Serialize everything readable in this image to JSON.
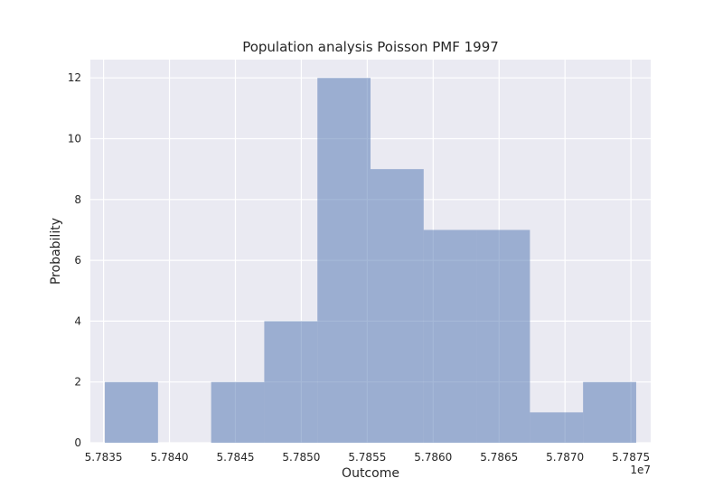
{
  "chart_data": {
    "type": "bar",
    "title": "Population analysis Poisson PMF 1997",
    "xlabel": "Outcome",
    "ylabel": "Probability",
    "offset_label": "1e7",
    "xlim": [
      5.7834,
      5.78765
    ],
    "ylim": [
      0,
      12.6
    ],
    "x_ticks": [
      5.7835,
      5.784,
      5.7845,
      5.785,
      5.7855,
      5.786,
      5.7865,
      5.787,
      5.7875
    ],
    "x_tick_labels": [
      "5.7835",
      "5.7840",
      "5.7845",
      "5.7850",
      "5.7855",
      "5.7860",
      "5.7865",
      "5.7870",
      "5.7875"
    ],
    "y_ticks": [
      0,
      2,
      4,
      6,
      8,
      10,
      12
    ],
    "y_tick_labels": [
      "0",
      "2",
      "4",
      "6",
      "8",
      "10",
      "12"
    ],
    "bin_edges": [
      5.78351,
      5.783913,
      5.784316,
      5.784719,
      5.785122,
      5.785525,
      5.785928,
      5.786331,
      5.786734,
      5.787137,
      5.78754
    ],
    "values": [
      2,
      0,
      2,
      4,
      12,
      9,
      7,
      7,
      1,
      2
    ],
    "bar_color": "#4c72b0",
    "background_color": "#eaeaf2",
    "grid": true
  }
}
